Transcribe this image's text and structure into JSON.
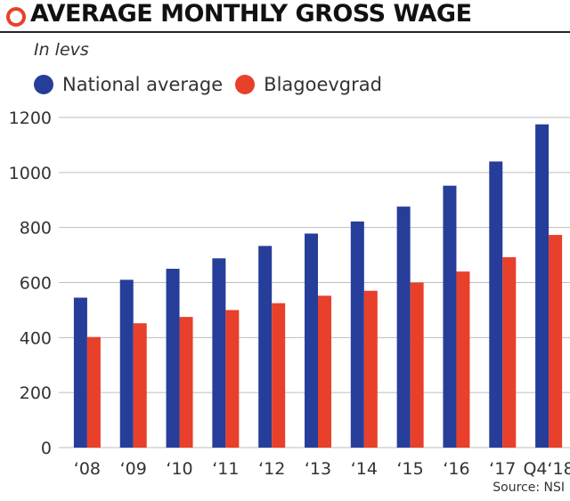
{
  "header": {
    "title": "AVERAGE MONTHLY GROSS WAGE",
    "subtitle": "In levs",
    "source": "Source: NSI"
  },
  "colors": {
    "national": "#263e9a",
    "blagoevgrad": "#e8402a",
    "accent": "#e8402a",
    "grid": "#bdbdbd"
  },
  "legend": {
    "items": [
      {
        "label": "National average"
      },
      {
        "label": "Blagoevgrad"
      }
    ]
  },
  "chart_data": {
    "type": "bar",
    "categories": [
      "‘08",
      "‘09",
      "‘10",
      "‘11",
      "‘12",
      "‘13",
      "‘14",
      "‘15",
      "‘16",
      "‘17",
      "Q4‘18"
    ],
    "series": [
      {
        "name": "National average",
        "values": [
          545,
          610,
          650,
          688,
          733,
          778,
          822,
          876,
          952,
          1040,
          1175
        ]
      },
      {
        "name": "Blagoevgrad",
        "values": [
          402,
          452,
          475,
          500,
          525,
          552,
          570,
          600,
          640,
          692,
          773
        ]
      }
    ],
    "ylim": [
      0,
      1200
    ],
    "yticks": [
      0,
      200,
      400,
      600,
      800,
      1000,
      1200
    ],
    "grid": true,
    "legend_position": "top-left"
  }
}
